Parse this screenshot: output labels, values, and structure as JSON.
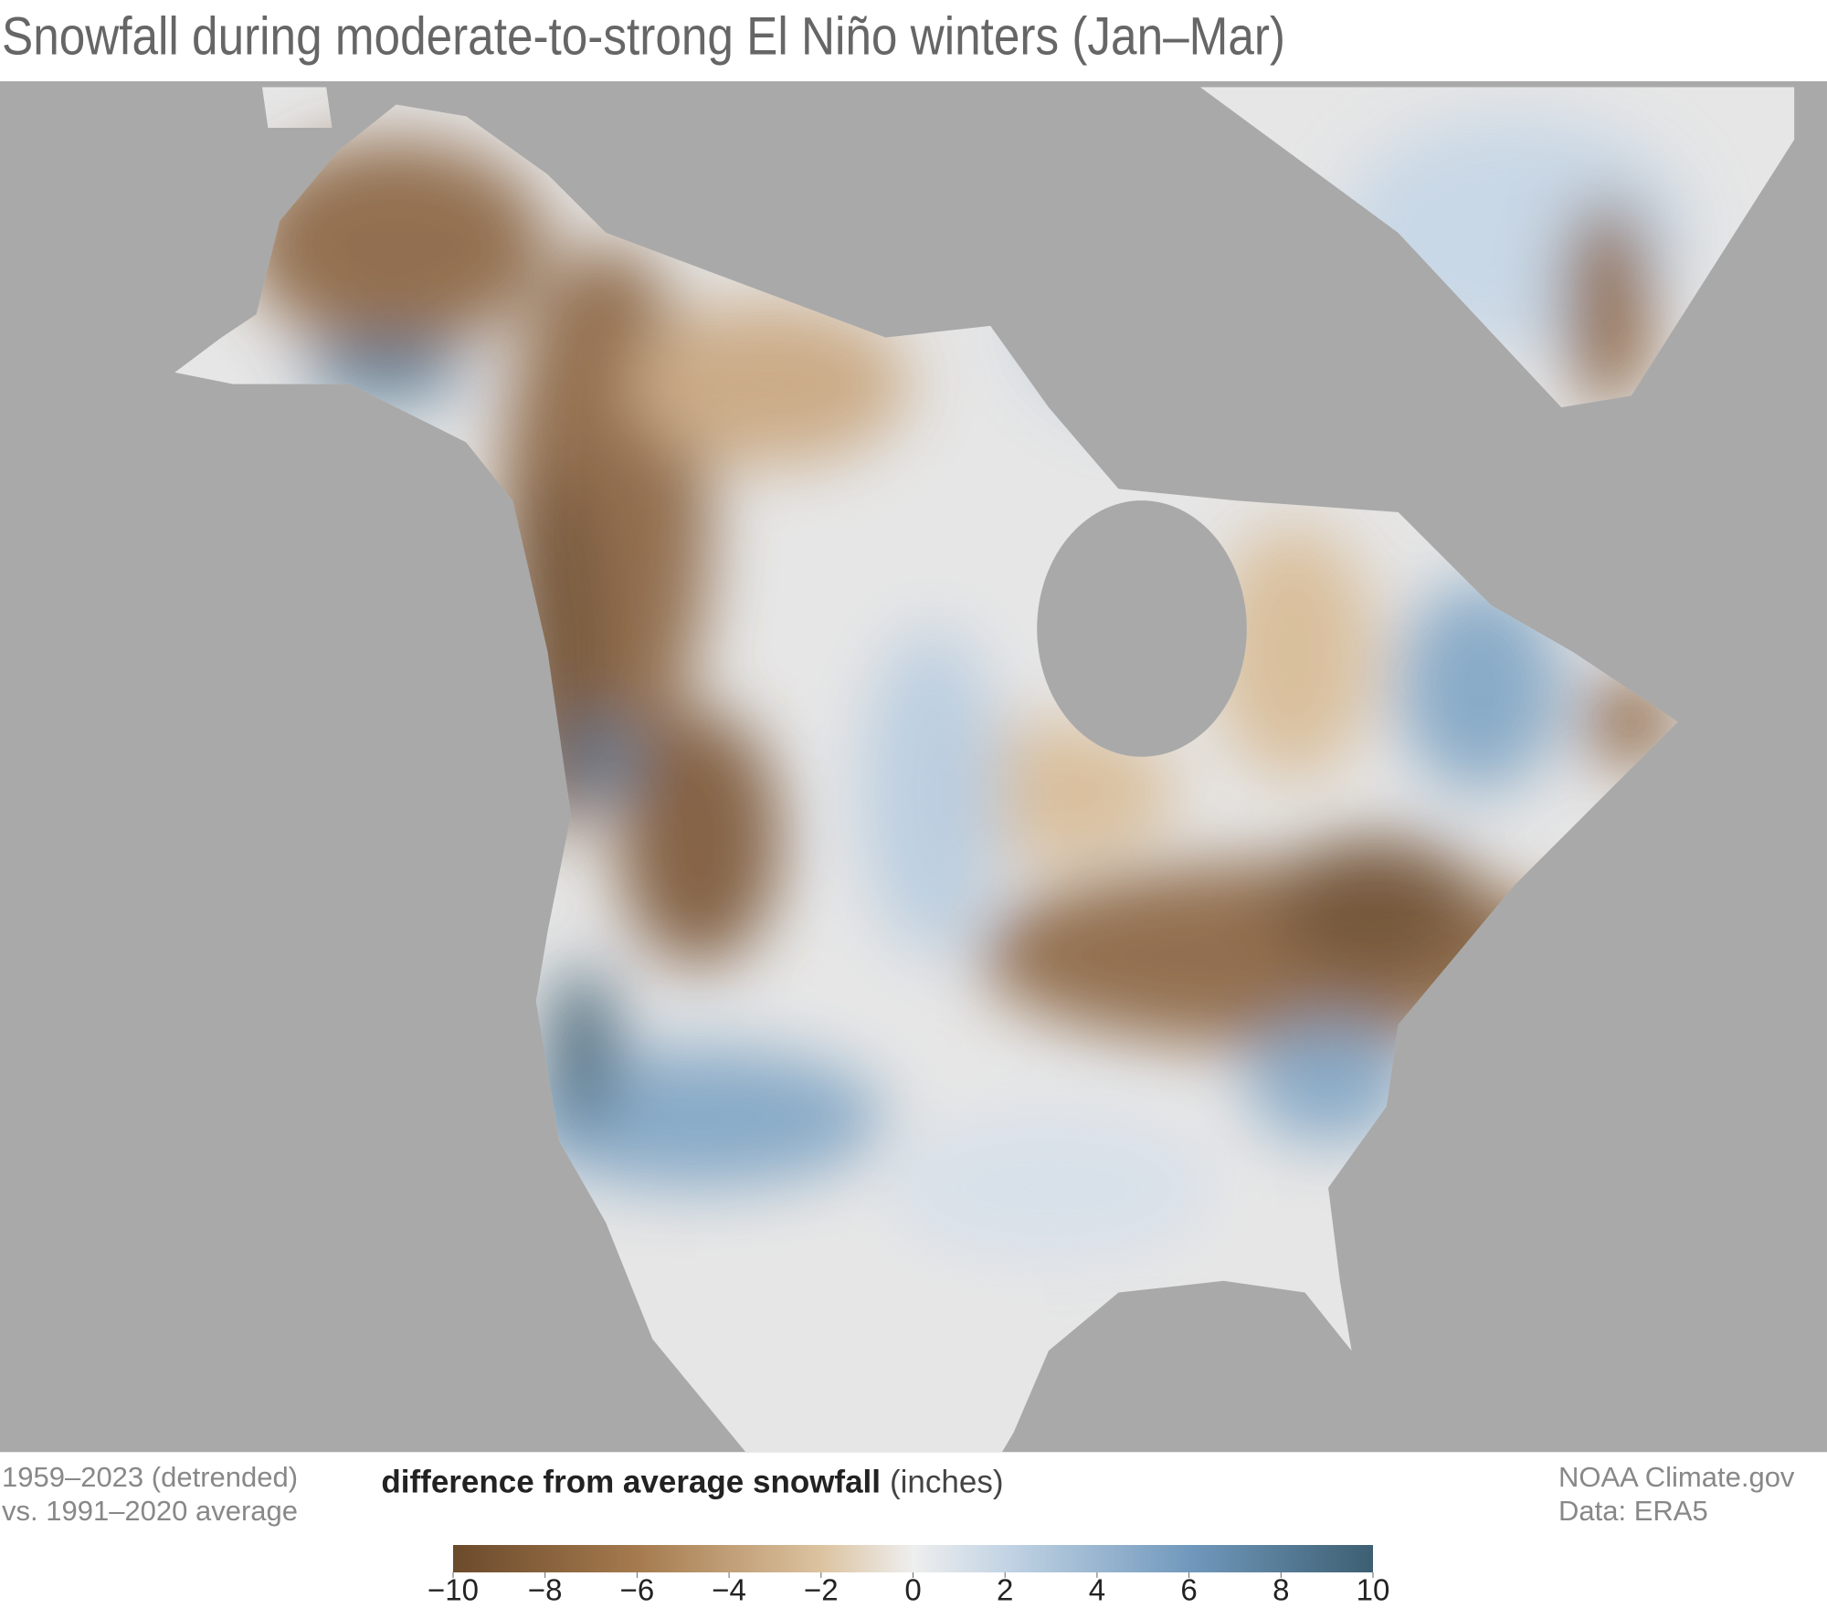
{
  "title": "Snowfall during moderate-to-strong El Niño winters (Jan–Mar)",
  "notes_left": [
    "1959–2023 (detrended)",
    "vs. 1991–2020 average"
  ],
  "notes_right": [
    "NOAA Climate.gov",
    "Data: ERA5"
  ],
  "colorbar": {
    "title": "difference from average snowfall",
    "unit": "(inches)",
    "lim": [
      -10,
      10
    ],
    "ticks": [
      {
        "value": -10,
        "label": "−10"
      },
      {
        "value": -8,
        "label": "−8"
      },
      {
        "value": -6,
        "label": "−6"
      },
      {
        "value": -4,
        "label": "−4"
      },
      {
        "value": -2,
        "label": "−2"
      },
      0,
      2,
      4,
      6,
      8,
      10
    ]
  }
}
